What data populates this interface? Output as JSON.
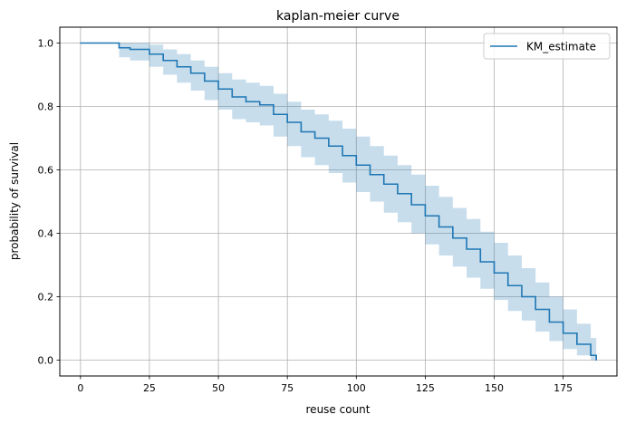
{
  "chart_data": {
    "type": "line",
    "title": "kaplan-meier curve",
    "xlabel": "reuse count",
    "ylabel": "probability of survival",
    "xlim": [
      -7.5,
      194.5
    ],
    "ylim": [
      -0.05,
      1.05
    ],
    "xticks": [
      0,
      25,
      50,
      75,
      100,
      125,
      150,
      175
    ],
    "xtick_labels": [
      "0",
      "25",
      "50",
      "75",
      "100",
      "125",
      "150",
      "175"
    ],
    "yticks": [
      0.0,
      0.2,
      0.4,
      0.6,
      0.8,
      1.0
    ],
    "ytick_labels": [
      "0.0",
      "0.2",
      "0.4",
      "0.6",
      "0.8",
      "1.0"
    ],
    "grid": true,
    "legend_position": "upper-right",
    "step": true,
    "series": [
      {
        "name": "KM_estimate",
        "color": "#1f77b4",
        "ci_color": "#1f77b4",
        "ci_alpha": 0.25,
        "x": [
          0,
          14,
          18,
          25,
          30,
          35,
          40,
          45,
          50,
          55,
          60,
          65,
          70,
          75,
          80,
          85,
          90,
          95,
          100,
          105,
          110,
          115,
          120,
          125,
          130,
          135,
          140,
          145,
          150,
          155,
          160,
          165,
          170,
          175,
          180,
          185,
          187
        ],
        "y": [
          1.0,
          0.985,
          0.98,
          0.965,
          0.945,
          0.925,
          0.905,
          0.88,
          0.855,
          0.83,
          0.815,
          0.805,
          0.775,
          0.75,
          0.72,
          0.7,
          0.675,
          0.645,
          0.615,
          0.585,
          0.555,
          0.525,
          0.49,
          0.455,
          0.42,
          0.385,
          0.35,
          0.31,
          0.275,
          0.235,
          0.2,
          0.16,
          0.12,
          0.085,
          0.05,
          0.015,
          0.0
        ],
        "lower": [
          1.0,
          0.955,
          0.945,
          0.925,
          0.9,
          0.875,
          0.85,
          0.82,
          0.79,
          0.76,
          0.75,
          0.74,
          0.705,
          0.675,
          0.64,
          0.615,
          0.59,
          0.56,
          0.53,
          0.5,
          0.465,
          0.435,
          0.4,
          0.365,
          0.33,
          0.295,
          0.26,
          0.225,
          0.19,
          0.155,
          0.125,
          0.09,
          0.06,
          0.035,
          0.015,
          0.0,
          0.0
        ],
        "upper": [
          1.0,
          1.0,
          1.0,
          0.995,
          0.98,
          0.965,
          0.945,
          0.925,
          0.905,
          0.885,
          0.875,
          0.865,
          0.84,
          0.815,
          0.79,
          0.775,
          0.755,
          0.73,
          0.705,
          0.675,
          0.645,
          0.615,
          0.585,
          0.55,
          0.515,
          0.48,
          0.445,
          0.405,
          0.37,
          0.33,
          0.29,
          0.245,
          0.2,
          0.16,
          0.115,
          0.07,
          0.03
        ]
      }
    ]
  }
}
